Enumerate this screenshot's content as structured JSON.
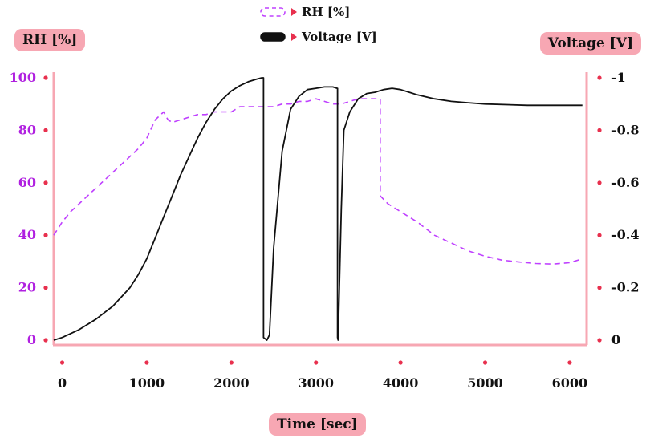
{
  "chart_data": {
    "type": "line",
    "xlabel": "Time [sec]",
    "ylabel_left": "RH [%]",
    "ylabel_right": "Voltage [V]",
    "xlim": [
      -100,
      6200
    ],
    "ylim_left": [
      0,
      100
    ],
    "ylim_right": [
      0,
      -1
    ],
    "x_ticks": [
      0,
      1000,
      2000,
      3000,
      4000,
      5000,
      6000
    ],
    "x_tick_labels": [
      "0",
      "1000",
      "2000",
      "3000",
      "4000",
      "5000",
      "6000"
    ],
    "y_left_ticks": [
      0,
      20,
      40,
      60,
      80,
      100
    ],
    "y_left_tick_labels": [
      "0",
      "20",
      "40",
      "60",
      "80",
      "100"
    ],
    "y_right_ticks": [
      0,
      -0.2,
      -0.4,
      -0.6,
      -0.8,
      -1
    ],
    "y_right_tick_labels": [
      "0",
      "-0.2",
      "-0.4",
      "-0.6",
      "-0.8",
      "-1"
    ],
    "legend_position": "top-center",
    "grid": false,
    "colors": {
      "rh": "#bf40ff",
      "voltage": "#111111",
      "axis": "#f7a7b3",
      "tick_dot": "#e8304e",
      "left_tick_label": "#b020e0"
    },
    "series": [
      {
        "name": "RH [%]",
        "axis": "left",
        "style": "dashed",
        "points": [
          [
            -100,
            40
          ],
          [
            0,
            45
          ],
          [
            100,
            49
          ],
          [
            200,
            52
          ],
          [
            300,
            55
          ],
          [
            400,
            58
          ],
          [
            500,
            61
          ],
          [
            600,
            64
          ],
          [
            700,
            67
          ],
          [
            800,
            70
          ],
          [
            900,
            73
          ],
          [
            1000,
            77
          ],
          [
            1100,
            84
          ],
          [
            1200,
            87
          ],
          [
            1250,
            84
          ],
          [
            1300,
            83
          ],
          [
            1400,
            84
          ],
          [
            1500,
            85
          ],
          [
            1600,
            86
          ],
          [
            1700,
            86
          ],
          [
            1800,
            87
          ],
          [
            1900,
            87
          ],
          [
            2000,
            87
          ],
          [
            2100,
            89
          ],
          [
            2200,
            89
          ],
          [
            2300,
            89
          ],
          [
            2400,
            89
          ],
          [
            2500,
            89
          ],
          [
            2600,
            90
          ],
          [
            2700,
            90
          ],
          [
            2800,
            91
          ],
          [
            2900,
            91
          ],
          [
            3000,
            92
          ],
          [
            3100,
            91
          ],
          [
            3200,
            90
          ],
          [
            3300,
            90
          ],
          [
            3400,
            91
          ],
          [
            3500,
            92
          ],
          [
            3600,
            92
          ],
          [
            3700,
            92
          ],
          [
            3760,
            92
          ],
          [
            3760,
            55
          ],
          [
            3850,
            52
          ],
          [
            4000,
            49
          ],
          [
            4200,
            45
          ],
          [
            4400,
            40
          ],
          [
            4600,
            37
          ],
          [
            4800,
            34
          ],
          [
            5000,
            32
          ],
          [
            5200,
            30.5
          ],
          [
            5400,
            29.8
          ],
          [
            5600,
            29.2
          ],
          [
            5800,
            29
          ],
          [
            6000,
            29.5
          ],
          [
            6150,
            31
          ]
        ]
      },
      {
        "name": "Voltage [V]",
        "axis": "right",
        "style": "solid",
        "points": [
          [
            -100,
            0
          ],
          [
            0,
            -0.01
          ],
          [
            200,
            -0.04
          ],
          [
            400,
            -0.08
          ],
          [
            600,
            -0.13
          ],
          [
            800,
            -0.2
          ],
          [
            900,
            -0.25
          ],
          [
            1000,
            -0.31
          ],
          [
            1100,
            -0.39
          ],
          [
            1200,
            -0.47
          ],
          [
            1300,
            -0.55
          ],
          [
            1400,
            -0.63
          ],
          [
            1500,
            -0.7
          ],
          [
            1600,
            -0.77
          ],
          [
            1700,
            -0.83
          ],
          [
            1800,
            -0.88
          ],
          [
            1900,
            -0.92
          ],
          [
            2000,
            -0.95
          ],
          [
            2100,
            -0.97
          ],
          [
            2200,
            -0.985
          ],
          [
            2300,
            -0.995
          ],
          [
            2360,
            -1.0
          ],
          [
            2380,
            -1.0
          ],
          [
            2380,
            -0.01
          ],
          [
            2420,
            0
          ],
          [
            2450,
            -0.02
          ],
          [
            2500,
            -0.35
          ],
          [
            2600,
            -0.72
          ],
          [
            2700,
            -0.88
          ],
          [
            2800,
            -0.93
          ],
          [
            2900,
            -0.955
          ],
          [
            3000,
            -0.96
          ],
          [
            3100,
            -0.965
          ],
          [
            3200,
            -0.965
          ],
          [
            3250,
            -0.96
          ],
          [
            3255,
            -0.96
          ],
          [
            3255,
            -0.01
          ],
          [
            3262,
            0
          ],
          [
            3300,
            -0.5
          ],
          [
            3330,
            -0.8
          ],
          [
            3400,
            -0.87
          ],
          [
            3500,
            -0.92
          ],
          [
            3600,
            -0.94
          ],
          [
            3700,
            -0.945
          ],
          [
            3800,
            -0.955
          ],
          [
            3900,
            -0.96
          ],
          [
            4000,
            -0.955
          ],
          [
            4100,
            -0.945
          ],
          [
            4200,
            -0.935
          ],
          [
            4400,
            -0.92
          ],
          [
            4600,
            -0.91
          ],
          [
            4800,
            -0.905
          ],
          [
            5000,
            -0.9
          ],
          [
            5500,
            -0.895
          ],
          [
            6000,
            -0.895
          ],
          [
            6150,
            -0.895
          ]
        ]
      }
    ]
  }
}
